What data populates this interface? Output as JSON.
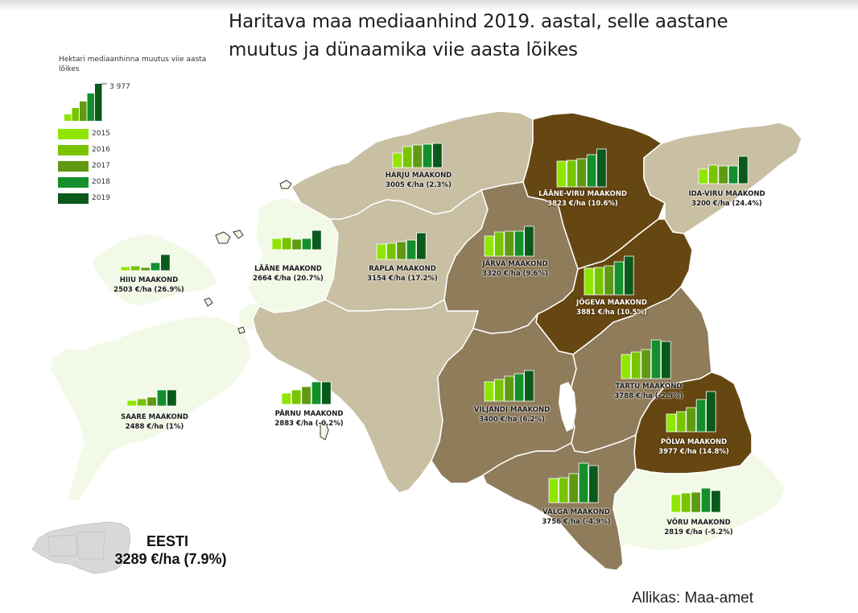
{
  "title": "Haritava maa mediaanhind 2019. aastal, selle aastane muutus ja dünaamika viie aasta lõikes",
  "legend": {
    "title": "Hektari mediaanhinna muutus viie aasta lõikes",
    "max_value": "3 977",
    "years": [
      {
        "year": "2015",
        "color": "#8fe600"
      },
      {
        "year": "2016",
        "color": "#78c400"
      },
      {
        "year": "2017",
        "color": "#5f9a12"
      },
      {
        "year": "2018",
        "color": "#148f2c"
      },
      {
        "year": "2019",
        "color": "#0a5a1c"
      }
    ]
  },
  "colors": {
    "light": "#f2f9e6",
    "beige": "#c9bfa3",
    "mid": "#8f7c5b",
    "dark": "#664711",
    "border": "#ffffff"
  },
  "counties": [
    {
      "id": "harju",
      "name": "HARJU MAAKOND",
      "value": "3005 €/ha (2.3%)",
      "fill": "beige"
    },
    {
      "id": "laane-viru",
      "name": "LÄÄNE-VIRU MAAKOND",
      "value": "3823 €/ha (10.6%)",
      "fill": "dark"
    },
    {
      "id": "ida-viru",
      "name": "IDA-VIRU MAAKOND",
      "value": "3200 €/ha (24.4%)",
      "fill": "beige"
    },
    {
      "id": "laane",
      "name": "LÄÄNE MAAKOND",
      "value": "2664 €/ha (20.7%)",
      "fill": "light"
    },
    {
      "id": "rapla",
      "name": "RAPLA MAAKOND",
      "value": "3154 €/ha (17.2%)",
      "fill": "beige"
    },
    {
      "id": "jarva",
      "name": "JÄRVA MAAKOND",
      "value": "3320 €/ha (9.6%)",
      "fill": "mid"
    },
    {
      "id": "hiiu",
      "name": "HIIU MAAKOND",
      "value": "2503 €/ha (26.9%)",
      "fill": "light"
    },
    {
      "id": "jogeva",
      "name": "JÕGEVA MAAKOND",
      "value": "3881 €/ha (10.5%)",
      "fill": "dark"
    },
    {
      "id": "tartu",
      "name": "TARTU MAAKOND",
      "value": "3788 €/ha (-2.9%)",
      "fill": "mid"
    },
    {
      "id": "saare",
      "name": "SAARE MAAKOND",
      "value": "2488 €/ha (1%)",
      "fill": "light"
    },
    {
      "id": "parnu",
      "name": "PÄRNU MAAKOND",
      "value": "2883 €/ha (-0.2%)",
      "fill": "beige"
    },
    {
      "id": "viljandi",
      "name": "VILJANDI MAAKOND",
      "value": "3400 €/ha (6.2%)",
      "fill": "mid"
    },
    {
      "id": "polva",
      "name": "PÕLVA MAAKOND",
      "value": "3977 €/ha (14.8%)",
      "fill": "dark"
    },
    {
      "id": "valga",
      "name": "VALGA MAAKOND",
      "value": "3756 €/ha (-4.9%)",
      "fill": "mid"
    },
    {
      "id": "voru",
      "name": "VÕRU MAAKOND",
      "value": "2819 €/ha (-5.2%)",
      "fill": "light"
    }
  ],
  "chart_data": {
    "type": "bar",
    "title": "Haritava maa mediaanhind 2019. aastal, selle aastane muutus ja dünaamika viie aasta lõikes",
    "unit": "€/ha",
    "categories": [
      "2015",
      "2016",
      "2017",
      "2018",
      "2019"
    ],
    "ylim": [
      0,
      3977
    ],
    "series": [
      {
        "name": "HARJU MAAKOND",
        "values": [
          2400,
          2800,
          2900,
          2938,
          3005
        ]
      },
      {
        "name": "LÄÄNE-VIRU MAAKOND",
        "values": [
          3100,
          3150,
          3250,
          3457,
          3823
        ]
      },
      {
        "name": "IDA-VIRU MAAKOND",
        "values": [
          2400,
          2650,
          2600,
          2572,
          3200
        ]
      },
      {
        "name": "LÄÄNE MAAKOND",
        "values": [
          2200,
          2250,
          2150,
          2207,
          2664
        ]
      },
      {
        "name": "RAPLA MAAKOND",
        "values": [
          2450,
          2500,
          2600,
          2691,
          3154
        ]
      },
      {
        "name": "JÄRVA MAAKOND",
        "values": [
          2750,
          3000,
          3050,
          3029,
          3320
        ]
      },
      {
        "name": "HIIU MAAKOND",
        "values": [
          1750,
          1800,
          1650,
          1972,
          2503
        ]
      },
      {
        "name": "JÕGEVA MAAKOND",
        "values": [
          3150,
          3200,
          3300,
          3512,
          3881
        ]
      },
      {
        "name": "TARTU MAAKOND",
        "values": [
          3000,
          3150,
          3300,
          3901,
          3788
        ]
      },
      {
        "name": "SAARE MAAKOND",
        "values": [
          1850,
          1950,
          2050,
          2463,
          2488
        ]
      },
      {
        "name": "PÄRNU MAAKOND",
        "values": [
          2200,
          2400,
          2600,
          2889,
          2883
        ]
      },
      {
        "name": "VILJANDI MAAKOND",
        "values": [
          2700,
          2850,
          3050,
          3201,
          3400
        ]
      },
      {
        "name": "PÕLVA MAAKOND",
        "values": [
          2600,
          2750,
          3000,
          3465,
          3977
        ]
      },
      {
        "name": "VALGA MAAKOND",
        "values": [
          3000,
          3050,
          3300,
          3950,
          3756
        ]
      },
      {
        "name": "VÕRU MAAKOND",
        "values": [
          2600,
          2700,
          2750,
          2974,
          2819
        ]
      }
    ]
  },
  "national": {
    "name": "EESTI",
    "value": "3289 €/ha (7.9%)"
  },
  "source": "Allikas: Maa-amet"
}
